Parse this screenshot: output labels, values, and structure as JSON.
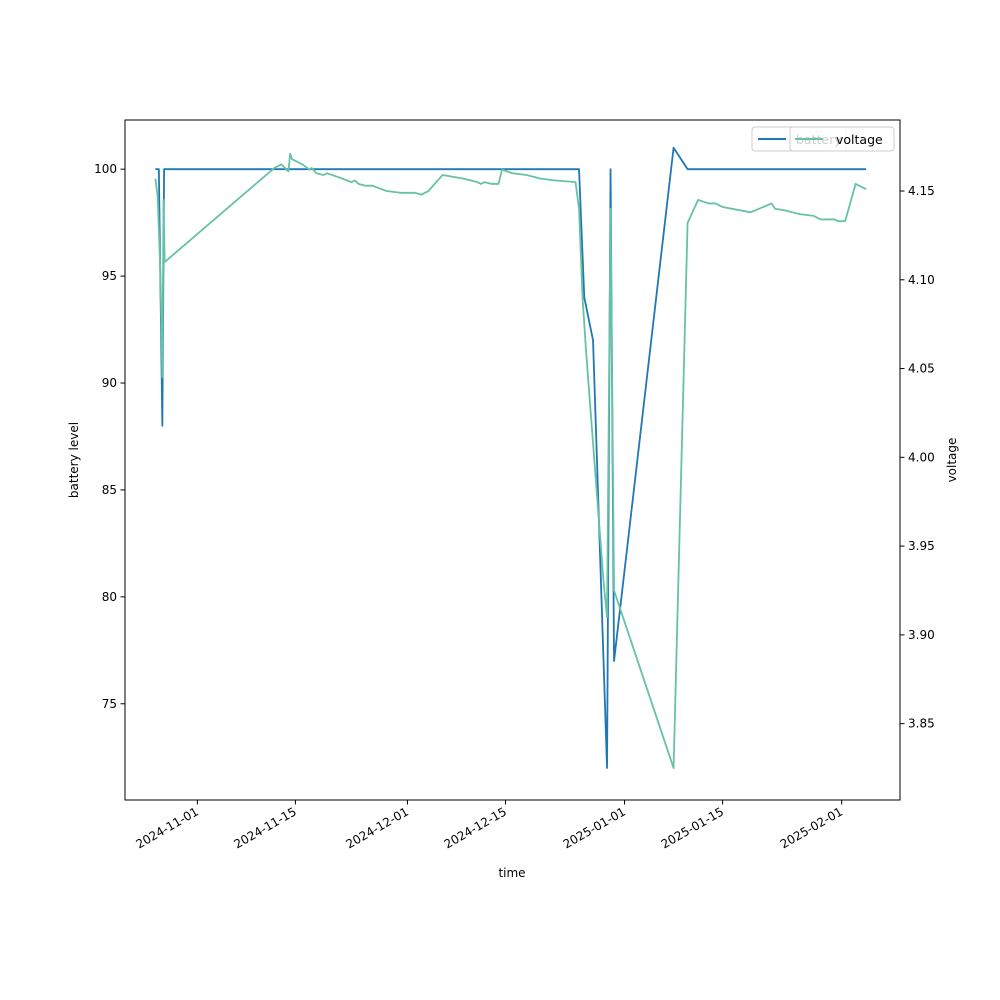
{
  "chart_data": {
    "type": "line",
    "xlabel": "time",
    "x_axis_type": "date",
    "x_ticks": [
      "2024-11-01",
      "2024-11-15",
      "2024-12-01",
      "2024-12-15",
      "2025-01-01",
      "2025-01-15",
      "2025-02-01"
    ],
    "xlim": [
      "2024-10-21T16:00",
      "2025-02-09T08:00"
    ],
    "y_left": {
      "label": "battery level",
      "ylim": [
        70.5,
        102.3
      ],
      "ticks": [
        "75",
        "80",
        "85",
        "90",
        "95",
        "100"
      ]
    },
    "y_right": {
      "label": "voltage",
      "ylim": [
        3.807,
        4.19
      ],
      "ticks": [
        "3.85",
        "3.90",
        "3.95",
        "4.00",
        "4.05",
        "4.10",
        "4.15"
      ]
    },
    "grid": false,
    "legends": [
      {
        "placement": "top-right",
        "entries": [
          "battery"
        ]
      },
      {
        "placement": "top-right",
        "entries": [
          "voltage"
        ]
      }
    ],
    "series": [
      {
        "name": "battery",
        "axis": "left",
        "color": "#1f77b4",
        "points": [
          [
            "2024-10-26T00:00",
            100
          ],
          [
            "2024-10-26T12:00",
            100
          ],
          [
            "2024-10-27T00:00",
            88
          ],
          [
            "2024-10-27T06:00",
            100
          ],
          [
            "2024-11-10T00:00",
            100
          ],
          [
            "2024-12-01T00:00",
            100
          ],
          [
            "2024-12-20T00:00",
            100
          ],
          [
            "2024-12-25T12:00",
            100
          ],
          [
            "2024-12-26T06:00",
            94
          ],
          [
            "2024-12-27T12:00",
            92
          ],
          [
            "2024-12-29T12:00",
            72
          ],
          [
            "2024-12-30T00:00",
            100
          ],
          [
            "2024-12-30T12:00",
            77
          ],
          [
            "2025-01-08T00:00",
            101
          ],
          [
            "2025-01-10T00:00",
            100
          ],
          [
            "2025-02-04T12:00",
            100
          ]
        ]
      },
      {
        "name": "voltage",
        "axis": "right",
        "color": "#66c2a5",
        "points": [
          [
            "2024-10-26T00:00",
            4.157
          ],
          [
            "2024-10-26T08:00",
            4.147
          ],
          [
            "2024-10-26T18:00",
            4.1
          ],
          [
            "2024-10-27T00:00",
            4.045
          ],
          [
            "2024-10-27T04:00",
            4.145
          ],
          [
            "2024-10-27T08:00",
            4.11
          ],
          [
            "2024-11-12T00:00",
            4.163
          ],
          [
            "2024-11-13T00:00",
            4.165
          ],
          [
            "2024-11-14T00:00",
            4.161
          ],
          [
            "2024-11-14T06:00",
            4.171
          ],
          [
            "2024-11-14T12:00",
            4.168
          ],
          [
            "2024-11-16T00:00",
            4.165
          ],
          [
            "2024-11-17T00:00",
            4.162
          ],
          [
            "2024-11-17T08:00",
            4.163
          ],
          [
            "2024-11-18T00:00",
            4.16
          ],
          [
            "2024-11-19T00:00",
            4.159
          ],
          [
            "2024-11-19T12:00",
            4.16
          ],
          [
            "2024-11-21T00:00",
            4.158
          ],
          [
            "2024-11-23T00:00",
            4.155
          ],
          [
            "2024-11-23T12:00",
            4.156
          ],
          [
            "2024-11-24T00:00",
            4.154
          ],
          [
            "2024-11-25T00:00",
            4.153
          ],
          [
            "2024-11-26T00:00",
            4.153
          ],
          [
            "2024-11-28T00:00",
            4.15
          ],
          [
            "2024-11-30T00:00",
            4.149
          ],
          [
            "2024-12-02T00:00",
            4.149
          ],
          [
            "2024-12-03T00:00",
            4.148
          ],
          [
            "2024-12-04T00:00",
            4.15
          ],
          [
            "2024-12-06T00:00",
            4.159
          ],
          [
            "2024-12-09T00:00",
            4.157
          ],
          [
            "2024-12-10T00:00",
            4.156
          ],
          [
            "2024-12-11T00:00",
            4.155
          ],
          [
            "2024-12-11T12:00",
            4.154
          ],
          [
            "2024-12-12T00:00",
            4.155
          ],
          [
            "2024-12-13T00:00",
            4.154
          ],
          [
            "2024-12-14T00:00",
            4.154
          ],
          [
            "2024-12-14T12:00",
            4.162
          ],
          [
            "2024-12-16T00:00",
            4.16
          ],
          [
            "2024-12-18T00:00",
            4.159
          ],
          [
            "2024-12-20T00:00",
            4.157
          ],
          [
            "2024-12-22T00:00",
            4.156
          ],
          [
            "2024-12-25T00:00",
            4.155
          ],
          [
            "2024-12-25T12:00",
            4.14
          ],
          [
            "2024-12-26T00:00",
            4.09
          ],
          [
            "2024-12-26T12:00",
            4.06
          ],
          [
            "2024-12-29T00:00",
            3.93
          ],
          [
            "2024-12-29T12:00",
            3.91
          ],
          [
            "2024-12-30T00:00",
            4.14
          ],
          [
            "2024-12-30T12:00",
            3.925
          ],
          [
            "2025-01-08T00:00",
            3.825
          ],
          [
            "2025-01-10T00:00",
            4.132
          ],
          [
            "2025-01-11T12:00",
            4.145
          ],
          [
            "2025-01-13T00:00",
            4.143
          ],
          [
            "2025-01-14T00:00",
            4.143
          ],
          [
            "2025-01-15T00:00",
            4.141
          ],
          [
            "2025-01-19T00:00",
            4.138
          ],
          [
            "2025-01-22T00:00",
            4.143
          ],
          [
            "2025-01-22T12:00",
            4.14
          ],
          [
            "2025-01-24T00:00",
            4.139
          ],
          [
            "2025-01-26T00:00",
            4.137
          ],
          [
            "2025-01-28T00:00",
            4.136
          ],
          [
            "2025-01-29T00:00",
            4.134
          ],
          [
            "2025-01-31T00:00",
            4.134
          ],
          [
            "2025-01-31T12:00",
            4.133
          ],
          [
            "2025-02-01T12:00",
            4.133
          ],
          [
            "2025-02-03T00:00",
            4.154
          ],
          [
            "2025-02-04T12:00",
            4.151
          ]
        ]
      }
    ]
  }
}
